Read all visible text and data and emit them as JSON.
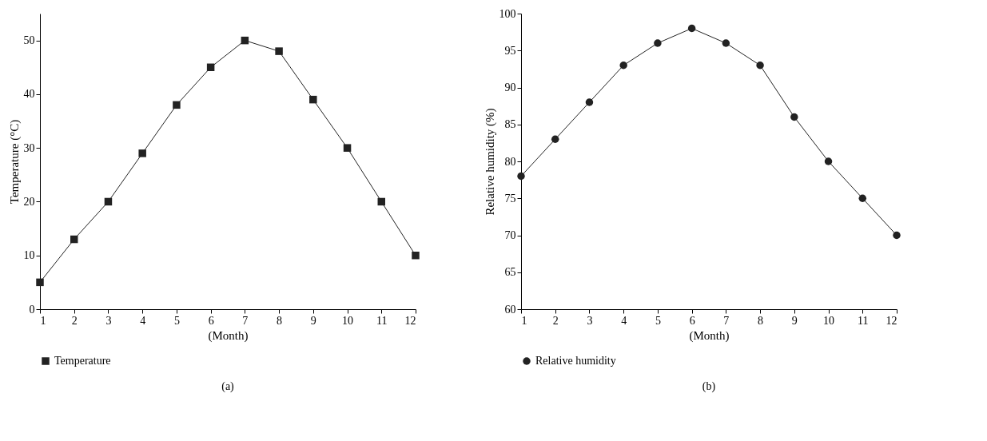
{
  "chart_data": [
    {
      "type": "line",
      "xlabel": "(Month)",
      "ylabel": "Temperature (°C)",
      "x": [
        1,
        2,
        3,
        4,
        5,
        6,
        7,
        8,
        9,
        10,
        11,
        12
      ],
      "series": [
        {
          "name": "Temperature",
          "color": "#222222",
          "values": [
            5,
            13,
            20,
            29,
            38,
            45,
            50,
            48,
            39,
            30,
            20,
            10
          ]
        }
      ],
      "xlim": [
        1,
        12
      ],
      "xticks": [
        1,
        2,
        3,
        4,
        5,
        6,
        7,
        8,
        9,
        10,
        11,
        12
      ],
      "ylim": [
        0,
        55
      ],
      "yticks": [
        0,
        10,
        20,
        30,
        40,
        50
      ],
      "marker": "square",
      "line_style": "solid",
      "grid": false,
      "legend": "bottom left",
      "annotations": [
        "(a)"
      ]
    },
    {
      "type": "line",
      "xlabel": "(Month)",
      "ylabel": "Relative humidity (%)",
      "x": [
        1,
        2,
        3,
        4,
        5,
        6,
        7,
        8,
        9,
        10,
        11,
        12
      ],
      "series": [
        {
          "name": "Relative humidity",
          "color": "#222222",
          "values": [
            78,
            83,
            88,
            93,
            96,
            98,
            96,
            93,
            86,
            80,
            75,
            70
          ]
        }
      ],
      "xlim": [
        1,
        12
      ],
      "xticks": [
        1,
        2,
        3,
        4,
        5,
        6,
        7,
        8,
        9,
        10,
        11,
        12
      ],
      "ylim": [
        60,
        100
      ],
      "yticks": [
        60,
        65,
        70,
        75,
        80,
        85,
        90,
        95,
        100
      ],
      "marker": "circle",
      "line_style": "solid",
      "grid": false,
      "legend": "bottom left",
      "annotations": [
        "(b)"
      ]
    }
  ]
}
